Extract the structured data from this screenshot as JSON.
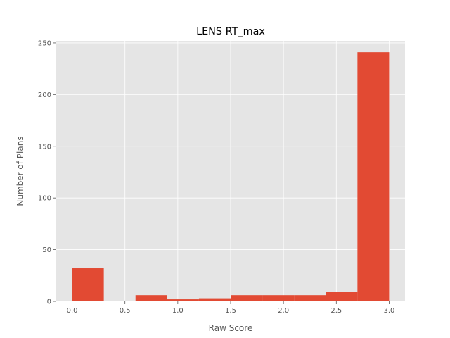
{
  "chart_data": {
    "type": "bar",
    "title": "LENS RT_max",
    "xlabel": "Raw Score",
    "ylabel": "Number of Plans",
    "xlim": [
      -0.15,
      3.15
    ],
    "ylim": [
      0,
      252
    ],
    "xticks": [
      0.0,
      0.5,
      1.0,
      1.5,
      2.0,
      2.5,
      3.0
    ],
    "xtick_labels": [
      "0.0",
      "0.5",
      "1.0",
      "1.5",
      "2.0",
      "2.5",
      "3.0"
    ],
    "yticks": [
      0,
      50,
      100,
      150,
      200,
      250
    ],
    "ytick_labels": [
      "0",
      "50",
      "100",
      "150",
      "200",
      "250"
    ],
    "bins": [
      {
        "x0": 0.0,
        "x1": 0.3,
        "count": 32
      },
      {
        "x0": 0.3,
        "x1": 0.6,
        "count": 0
      },
      {
        "x0": 0.6,
        "x1": 0.9,
        "count": 6
      },
      {
        "x0": 0.9,
        "x1": 1.2,
        "count": 2
      },
      {
        "x0": 1.2,
        "x1": 1.5,
        "count": 3
      },
      {
        "x0": 1.5,
        "x1": 1.8,
        "count": 6
      },
      {
        "x0": 1.8,
        "x1": 2.1,
        "count": 6
      },
      {
        "x0": 2.1,
        "x1": 2.4,
        "count": 6
      },
      {
        "x0": 2.4,
        "x1": 2.7,
        "count": 9
      },
      {
        "x0": 2.7,
        "x1": 3.0,
        "count": 241
      }
    ],
    "grid": true,
    "colors": {
      "bar": "#E24A33",
      "plot_background": "#E5E5E5",
      "grid": "#FFFFFF"
    }
  }
}
